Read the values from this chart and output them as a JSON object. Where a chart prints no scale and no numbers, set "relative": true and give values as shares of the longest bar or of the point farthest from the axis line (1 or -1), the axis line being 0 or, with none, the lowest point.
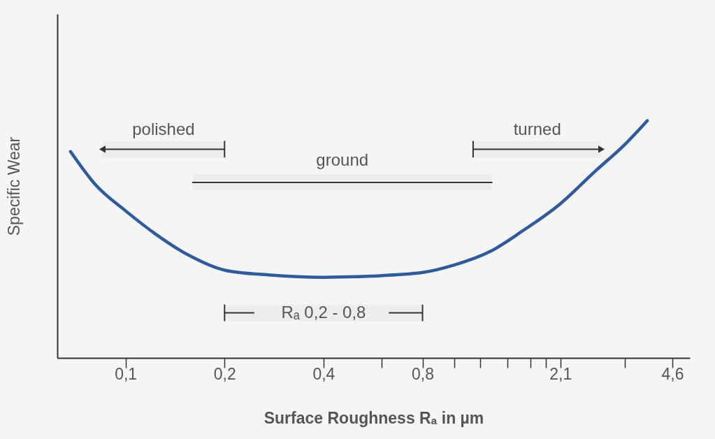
{
  "chart_data": {
    "type": "line",
    "relative": true,
    "xlabel": "Surface Roughness Rₐ in µm",
    "ylabel": "Specific Wear",
    "log": "x",
    "x": [
      0.068,
      0.081,
      0.1,
      0.124,
      0.157,
      0.2,
      0.272,
      0.4,
      0.56,
      0.8,
      0.99,
      1.29,
      1.61,
      2.1,
      2.67,
      3.3,
      3.86
    ],
    "series": [
      {
        "color": "#2e5aa0",
        "values": [
          0.87,
          0.73,
          0.62,
          0.52,
          0.43,
          0.37,
          0.35,
          0.34,
          0.345,
          0.36,
          0.39,
          0.45,
          0.535,
          0.65,
          0.785,
          0.9,
          1.0
        ]
      },
      {
        "type": "line",
        "color": "#333333",
        "x": [
          0.16,
          1.3
        ],
        "values": [
          0.74,
          0.74
        ]
      }
    ],
    "xlim": [
      0.062,
      5.2
    ],
    "xticks": [
      {
        "value": 0.1,
        "label": "0,1"
      },
      {
        "value": 0.2,
        "label": "0,2"
      },
      {
        "value": 0.4,
        "label": "0,4"
      },
      {
        "value": 0.6,
        "label": null
      },
      {
        "value": 0.8,
        "label": "0,8"
      },
      {
        "value": 1.0,
        "label": null
      },
      {
        "value": 1.2,
        "label": null
      },
      {
        "value": 1.45,
        "label": null
      },
      {
        "value": 1.7,
        "label": null
      },
      {
        "value": 1.9,
        "label": null
      },
      {
        "value": 2.1,
        "label": "2,1"
      },
      {
        "value": 3.3,
        "label": null
      },
      {
        "value": 4.6,
        "label": "4,6"
      }
    ],
    "bands": [
      {
        "axis": "x",
        "from": 0.085,
        "to": 0.2,
        "label": "polished",
        "color": "#333333"
      },
      {
        "axis": "x",
        "from": 0.16,
        "to": 1.3,
        "label": "ground",
        "color": "#333333"
      },
      {
        "axis": "x",
        "from": 1.14,
        "to": 2.8,
        "label": "turned",
        "color": "#333333"
      },
      {
        "axis": "x",
        "from": 0.2,
        "to": 0.8,
        "label": "Rₐ 0,2 - 0,8",
        "color": "#333333"
      }
    ]
  }
}
